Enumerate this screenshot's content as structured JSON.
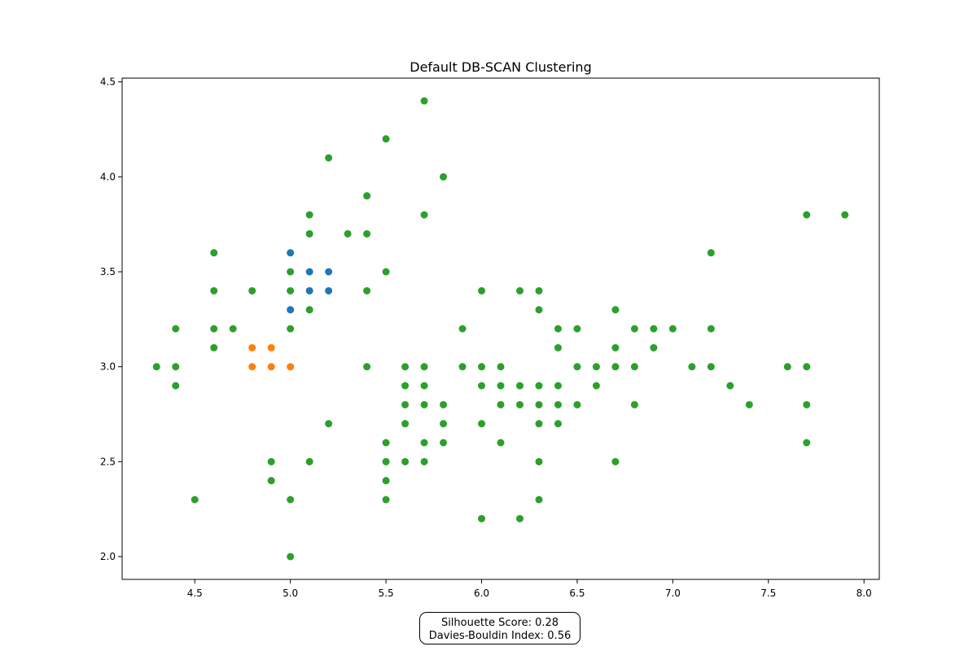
{
  "chart_data": {
    "type": "scatter",
    "title": "Default DB-SCAN Clustering",
    "xlabel": "",
    "ylabel": "",
    "xlim": [
      4.12,
      8.08
    ],
    "ylim": [
      1.88,
      4.52
    ],
    "xticks": [
      4.5,
      5.0,
      5.5,
      6.0,
      6.5,
      7.0,
      7.5,
      8.0
    ],
    "xtick_labels": [
      "4.5",
      "5.0",
      "5.5",
      "6.0",
      "6.5",
      "7.0",
      "7.5",
      "8.0"
    ],
    "yticks": [
      2.0,
      2.5,
      3.0,
      3.5,
      4.0,
      4.5
    ],
    "ytick_labels": [
      "2.0",
      "2.5",
      "3.0",
      "3.5",
      "4.0",
      "4.5"
    ],
    "grid": false,
    "series": [
      {
        "color": "#1f77b4",
        "points": [
          [
            5.0,
            3.6
          ],
          [
            5.1,
            3.5
          ],
          [
            5.2,
            3.5
          ],
          [
            5.1,
            3.4
          ],
          [
            5.2,
            3.4
          ],
          [
            5.0,
            3.3
          ]
        ]
      },
      {
        "color": "#ff7f0e",
        "points": [
          [
            4.8,
            3.1
          ],
          [
            4.9,
            3.1
          ],
          [
            4.8,
            3.0
          ],
          [
            4.9,
            3.0
          ],
          [
            5.0,
            3.0
          ]
        ]
      },
      {
        "color": "#2ca02c",
        "points": [
          [
            5.7,
            4.4
          ],
          [
            5.5,
            4.2
          ],
          [
            5.2,
            4.1
          ],
          [
            5.8,
            4.0
          ],
          [
            5.4,
            3.9
          ],
          [
            5.1,
            3.8
          ],
          [
            5.7,
            3.8
          ],
          [
            7.7,
            3.8
          ],
          [
            7.9,
            3.8
          ],
          [
            5.1,
            3.7
          ],
          [
            5.3,
            3.7
          ],
          [
            5.4,
            3.7
          ],
          [
            4.6,
            3.6
          ],
          [
            7.2,
            3.6
          ],
          [
            5.0,
            3.5
          ],
          [
            5.5,
            3.5
          ],
          [
            4.6,
            3.4
          ],
          [
            4.8,
            3.4
          ],
          [
            5.0,
            3.4
          ],
          [
            5.4,
            3.4
          ],
          [
            6.0,
            3.4
          ],
          [
            6.2,
            3.4
          ],
          [
            6.3,
            3.4
          ],
          [
            5.1,
            3.3
          ],
          [
            6.3,
            3.3
          ],
          [
            6.7,
            3.3
          ],
          [
            4.4,
            3.2
          ],
          [
            4.6,
            3.2
          ],
          [
            4.7,
            3.2
          ],
          [
            5.0,
            3.2
          ],
          [
            5.9,
            3.2
          ],
          [
            6.4,
            3.2
          ],
          [
            6.5,
            3.2
          ],
          [
            6.8,
            3.2
          ],
          [
            6.9,
            3.2
          ],
          [
            7.0,
            3.2
          ],
          [
            7.2,
            3.2
          ],
          [
            4.6,
            3.1
          ],
          [
            6.4,
            3.1
          ],
          [
            6.7,
            3.1
          ],
          [
            6.9,
            3.1
          ],
          [
            4.3,
            3.0
          ],
          [
            4.4,
            3.0
          ],
          [
            5.4,
            3.0
          ],
          [
            5.6,
            3.0
          ],
          [
            5.7,
            3.0
          ],
          [
            5.9,
            3.0
          ],
          [
            6.0,
            3.0
          ],
          [
            6.1,
            3.0
          ],
          [
            6.5,
            3.0
          ],
          [
            6.6,
            3.0
          ],
          [
            6.7,
            3.0
          ],
          [
            6.8,
            3.0
          ],
          [
            7.1,
            3.0
          ],
          [
            7.2,
            3.0
          ],
          [
            7.6,
            3.0
          ],
          [
            7.7,
            3.0
          ],
          [
            4.4,
            2.9
          ],
          [
            5.6,
            2.9
          ],
          [
            5.7,
            2.9
          ],
          [
            6.0,
            2.9
          ],
          [
            6.1,
            2.9
          ],
          [
            6.2,
            2.9
          ],
          [
            6.3,
            2.9
          ],
          [
            6.4,
            2.9
          ],
          [
            6.6,
            2.9
          ],
          [
            7.3,
            2.9
          ],
          [
            5.6,
            2.8
          ],
          [
            5.7,
            2.8
          ],
          [
            5.8,
            2.8
          ],
          [
            6.1,
            2.8
          ],
          [
            6.2,
            2.8
          ],
          [
            6.3,
            2.8
          ],
          [
            6.4,
            2.8
          ],
          [
            6.5,
            2.8
          ],
          [
            6.8,
            2.8
          ],
          [
            7.4,
            2.8
          ],
          [
            7.7,
            2.8
          ],
          [
            5.2,
            2.7
          ],
          [
            5.6,
            2.7
          ],
          [
            5.8,
            2.7
          ],
          [
            6.0,
            2.7
          ],
          [
            6.3,
            2.7
          ],
          [
            6.4,
            2.7
          ],
          [
            5.5,
            2.6
          ],
          [
            5.7,
            2.6
          ],
          [
            5.8,
            2.6
          ],
          [
            6.1,
            2.6
          ],
          [
            7.7,
            2.6
          ],
          [
            4.9,
            2.5
          ],
          [
            5.1,
            2.5
          ],
          [
            5.5,
            2.5
          ],
          [
            5.6,
            2.5
          ],
          [
            5.7,
            2.5
          ],
          [
            6.3,
            2.5
          ],
          [
            6.7,
            2.5
          ],
          [
            4.9,
            2.4
          ],
          [
            5.5,
            2.4
          ],
          [
            4.5,
            2.3
          ],
          [
            5.0,
            2.3
          ],
          [
            5.5,
            2.3
          ],
          [
            6.3,
            2.3
          ],
          [
            6.0,
            2.2
          ],
          [
            6.2,
            2.2
          ],
          [
            5.0,
            2.0
          ]
        ]
      }
    ]
  },
  "metrics": {
    "silhouette": "Silhouette Score: 0.28",
    "davies_bouldin": "Davies-Bouldin Index: 0.56"
  }
}
